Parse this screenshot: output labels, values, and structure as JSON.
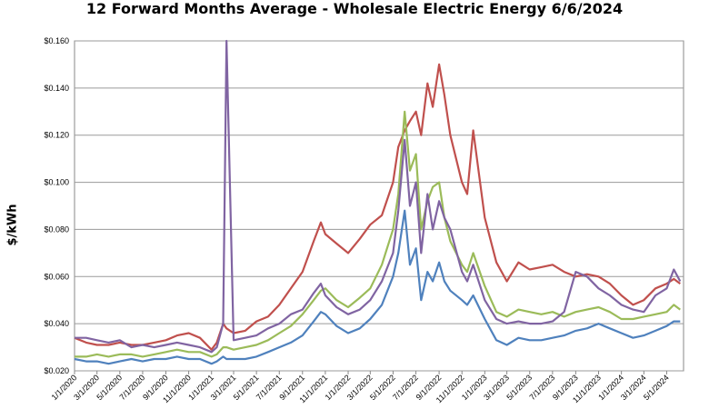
{
  "chart_data": {
    "type": "line",
    "title": "12 Forward Months Average - Wholesale Electric Energy 6/6/2024",
    "xlabel": "",
    "ylabel": "$/kWh",
    "ylim": [
      0.02,
      0.16
    ],
    "yticks": [
      "$0.020",
      "$0.040",
      "$0.060",
      "$0.080",
      "$0.100",
      "$0.120",
      "$0.140",
      "$0.160"
    ],
    "grid": true,
    "legend": "none",
    "x_tick_labels": [
      "1/1/2020",
      "3/1/2020",
      "5/1/2020",
      "7/1/2020",
      "9/1/2020",
      "11/1/2020",
      "1/1/2021",
      "3/1/2021",
      "5/1/2021",
      "7/1/2021",
      "9/1/2021",
      "11/1/2021",
      "1/1/2022",
      "3/1/2022",
      "5/1/2022",
      "7/1/2022",
      "9/1/2022",
      "11/1/2022",
      "1/1/2023",
      "3/1/2023",
      "5/1/2023",
      "7/1/2023",
      "9/1/2023",
      "11/1/2023",
      "1/1/2024",
      "3/1/2024",
      "5/1/2024"
    ],
    "x": [
      "2020-01-01",
      "2020-02-01",
      "2020-03-01",
      "2020-04-01",
      "2020-05-01",
      "2020-06-01",
      "2020-07-01",
      "2020-08-01",
      "2020-09-01",
      "2020-10-01",
      "2020-11-01",
      "2020-12-01",
      "2021-01-01",
      "2021-01-15",
      "2021-02-01",
      "2021-02-10",
      "2021-03-01",
      "2021-04-01",
      "2021-05-01",
      "2021-06-01",
      "2021-07-01",
      "2021-08-01",
      "2021-09-01",
      "2021-10-01",
      "2021-10-20",
      "2021-11-01",
      "2021-12-01",
      "2022-01-01",
      "2022-02-01",
      "2022-03-01",
      "2022-04-01",
      "2022-05-01",
      "2022-05-15",
      "2022-06-01",
      "2022-06-15",
      "2022-07-01",
      "2022-07-15",
      "2022-08-01",
      "2022-08-15",
      "2022-09-01",
      "2022-09-15",
      "2022-10-01",
      "2022-11-01",
      "2022-11-15",
      "2022-12-01",
      "2023-01-01",
      "2023-02-01",
      "2023-03-01",
      "2023-04-01",
      "2023-05-01",
      "2023-06-01",
      "2023-07-01",
      "2023-08-01",
      "2023-09-01",
      "2023-10-01",
      "2023-11-01",
      "2023-12-01",
      "2024-01-01",
      "2024-02-01",
      "2024-03-01",
      "2024-04-01",
      "2024-05-01",
      "2024-05-20",
      "2024-06-06"
    ],
    "series": [
      {
        "color": "#c0504d",
        "values": [
          0.034,
          0.032,
          0.031,
          0.031,
          0.032,
          0.031,
          0.031,
          0.032,
          0.033,
          0.035,
          0.036,
          0.034,
          0.029,
          0.032,
          0.04,
          0.038,
          0.036,
          0.037,
          0.041,
          0.043,
          0.048,
          0.055,
          0.062,
          0.075,
          0.083,
          0.078,
          0.074,
          0.07,
          0.076,
          0.082,
          0.086,
          0.1,
          0.115,
          0.122,
          0.126,
          0.13,
          0.12,
          0.142,
          0.132,
          0.15,
          0.137,
          0.12,
          0.1,
          0.095,
          0.122,
          0.085,
          0.066,
          0.058,
          0.066,
          0.063,
          0.064,
          0.065,
          0.062,
          0.06,
          0.061,
          0.06,
          0.057,
          0.052,
          0.048,
          0.05,
          0.055,
          0.057,
          0.059,
          0.057
        ]
      },
      {
        "color": "#9bbb59",
        "values": [
          0.026,
          0.026,
          0.027,
          0.026,
          0.027,
          0.027,
          0.026,
          0.027,
          0.028,
          0.029,
          0.028,
          0.028,
          0.026,
          0.027,
          0.03,
          0.03,
          0.029,
          0.03,
          0.031,
          0.033,
          0.036,
          0.039,
          0.044,
          0.05,
          0.054,
          0.055,
          0.05,
          0.047,
          0.051,
          0.055,
          0.065,
          0.08,
          0.095,
          0.13,
          0.105,
          0.112,
          0.08,
          0.092,
          0.098,
          0.1,
          0.085,
          0.075,
          0.065,
          0.062,
          0.07,
          0.056,
          0.045,
          0.043,
          0.046,
          0.045,
          0.044,
          0.045,
          0.043,
          0.045,
          0.046,
          0.047,
          0.045,
          0.042,
          0.042,
          0.043,
          0.044,
          0.045,
          0.048,
          0.046
        ]
      },
      {
        "color": "#8064a2",
        "values": [
          0.034,
          0.034,
          0.033,
          0.032,
          0.033,
          0.03,
          0.031,
          0.03,
          0.031,
          0.032,
          0.031,
          0.03,
          0.028,
          0.03,
          0.04,
          0.16,
          0.033,
          0.034,
          0.035,
          0.038,
          0.04,
          0.044,
          0.046,
          0.053,
          0.057,
          0.052,
          0.047,
          0.044,
          0.046,
          0.05,
          0.058,
          0.07,
          0.088,
          0.118,
          0.09,
          0.1,
          0.07,
          0.095,
          0.08,
          0.092,
          0.085,
          0.08,
          0.062,
          0.058,
          0.065,
          0.05,
          0.042,
          0.04,
          0.041,
          0.04,
          0.04,
          0.041,
          0.045,
          0.062,
          0.06,
          0.055,
          0.052,
          0.048,
          0.046,
          0.045,
          0.052,
          0.055,
          0.063,
          0.058
        ]
      },
      {
        "color": "#4f81bd",
        "values": [
          0.025,
          0.024,
          0.024,
          0.023,
          0.024,
          0.025,
          0.024,
          0.025,
          0.025,
          0.026,
          0.025,
          0.025,
          0.023,
          0.024,
          0.026,
          0.025,
          0.025,
          0.025,
          0.026,
          0.028,
          0.03,
          0.032,
          0.035,
          0.041,
          0.045,
          0.044,
          0.039,
          0.036,
          0.038,
          0.042,
          0.048,
          0.06,
          0.07,
          0.088,
          0.065,
          0.072,
          0.05,
          0.062,
          0.058,
          0.066,
          0.058,
          0.054,
          0.05,
          0.048,
          0.052,
          0.042,
          0.033,
          0.031,
          0.034,
          0.033,
          0.033,
          0.034,
          0.035,
          0.037,
          0.038,
          0.04,
          0.038,
          0.036,
          0.034,
          0.035,
          0.037,
          0.039,
          0.041,
          0.041
        ]
      }
    ]
  }
}
